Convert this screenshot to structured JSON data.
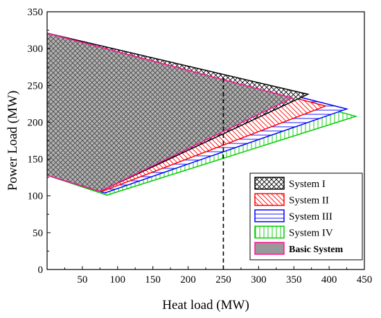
{
  "chart_data": {
    "type": "area",
    "xlabel": "Heat load (MW)",
    "ylabel": "Power Load (MW)",
    "xlim": [
      0,
      450
    ],
    "ylim": [
      0,
      350
    ],
    "x_ticks": [
      "50",
      "100",
      "150",
      "200",
      "250",
      "300",
      "350",
      "400",
      "450"
    ],
    "y_ticks": [
      "0",
      "50",
      "100",
      "150",
      "200",
      "250",
      "300",
      "350"
    ],
    "grid": false,
    "legend_position": "bottom-right",
    "reference_line": {
      "x": 250,
      "style": "dashed"
    },
    "series": [
      {
        "name": "System I",
        "color": "#000000",
        "hatch": "diagonal-cross",
        "points": [
          [
            0,
            321
          ],
          [
            370,
            238
          ],
          [
            75,
            106
          ],
          [
            0,
            128
          ]
        ]
      },
      {
        "name": "System II",
        "color": "#ff0000",
        "hatch": "diagonal",
        "points": [
          [
            0,
            321
          ],
          [
            395,
            222
          ],
          [
            78,
            106
          ],
          [
            0,
            128
          ]
        ]
      },
      {
        "name": "System III",
        "color": "#0000ff",
        "hatch": "horizontal",
        "points": [
          [
            0,
            321
          ],
          [
            425,
            218
          ],
          [
            82,
            104
          ],
          [
            0,
            128
          ]
        ]
      },
      {
        "name": "System IV",
        "color": "#00cc00",
        "hatch": "vertical",
        "points": [
          [
            0,
            321
          ],
          [
            438,
            208
          ],
          [
            85,
            101
          ],
          [
            0,
            128
          ]
        ]
      },
      {
        "name": "Basic System",
        "color": "#ff1493",
        "fill": "#999999",
        "points": [
          [
            0,
            321
          ],
          [
            348,
            233
          ],
          [
            75,
            106
          ],
          [
            0,
            128
          ]
        ]
      }
    ]
  }
}
